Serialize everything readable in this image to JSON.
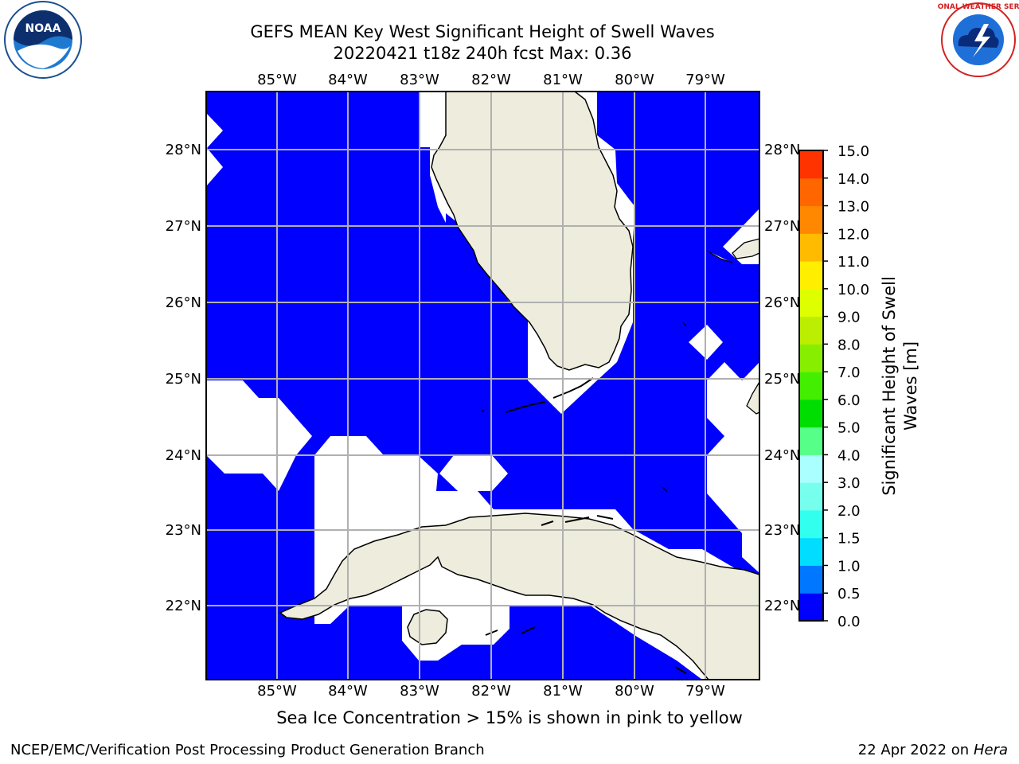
{
  "header": {
    "title_line1": "GEFS MEAN Key West Significant Height of Swell Waves",
    "title_line2": "20220421 t18z 240h fcst   Max: 0.36"
  },
  "logos": {
    "noaa_text": "NOAA",
    "nws_text": "NATIONAL WEATHER SERVICE"
  },
  "map": {
    "lon_labels": [
      "85°W",
      "84°W",
      "83°W",
      "82°W",
      "81°W",
      "80°W",
      "79°W"
    ],
    "lat_labels": [
      "28°N",
      "27°N",
      "26°N",
      "25°N",
      "24°N",
      "23°N",
      "22°N"
    ],
    "colors": {
      "ocean_swell": "#0000ff",
      "land": "#eeecdc",
      "no_data": "#ffffff",
      "grid": "#b0b0b0"
    }
  },
  "colorbar": {
    "ticks": [
      "15.0",
      "14.0",
      "13.0",
      "12.0",
      "11.0",
      "10.0",
      "9.0",
      "8.0",
      "7.0",
      "6.0",
      "5.0",
      "4.0",
      "3.0",
      "2.0",
      "1.5",
      "1.0",
      "0.5",
      "0.0"
    ],
    "label_line1": "Significant Height of Swell",
    "label_line2": "Waves [m]",
    "colors_bottom_to_top": [
      "#0000ff",
      "#0077ff",
      "#00ddff",
      "#33ffee",
      "#77ffee",
      "#aaffff",
      "#55ff88",
      "#00dd00",
      "#44ee00",
      "#88ee00",
      "#bbee00",
      "#ddff00",
      "#ffee00",
      "#ffbb00",
      "#ff8800",
      "#ff6600",
      "#ff3300",
      "#ff0000"
    ]
  },
  "caption": "Sea Ice Concentration > 15% is shown in pink to yellow",
  "footer": {
    "left": "NCEP/EMC/Verification Post Processing Product Generation Branch",
    "date": "22 Apr 2022 on",
    "machine": "Hera"
  }
}
